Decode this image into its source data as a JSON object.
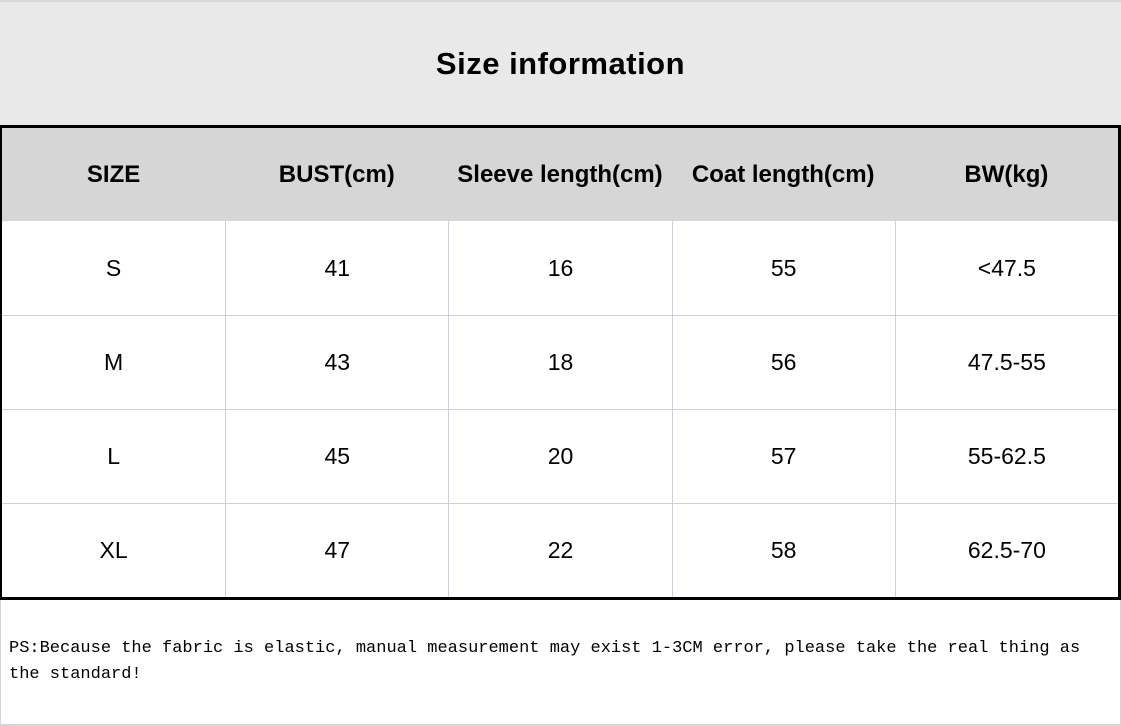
{
  "title": "Size information",
  "colors": {
    "title_band_bg": "#e9e9e9",
    "header_row_bg": "#d6d6d6",
    "data_row_bg": "#ffffff",
    "gridline": "#cfcfda",
    "table_border": "#000000",
    "text": "#000000"
  },
  "table": {
    "columns": [
      "SIZE",
      "BUST(cm)",
      "Sleeve length(cm)",
      "Coat length(cm)",
      "BW(kg)"
    ],
    "rows": [
      [
        "S",
        "41",
        "16",
        "55",
        "<47.5"
      ],
      [
        "M",
        "43",
        "18",
        "56",
        "47.5-55"
      ],
      [
        "L",
        "45",
        "20",
        "57",
        "55-62.5"
      ],
      [
        "XL",
        "47",
        "22",
        "58",
        "62.5-70"
      ]
    ]
  },
  "note": "PS:Because the fabric is elastic, manual measurement may exist 1-3CM error, please take the real thing as the standard!"
}
